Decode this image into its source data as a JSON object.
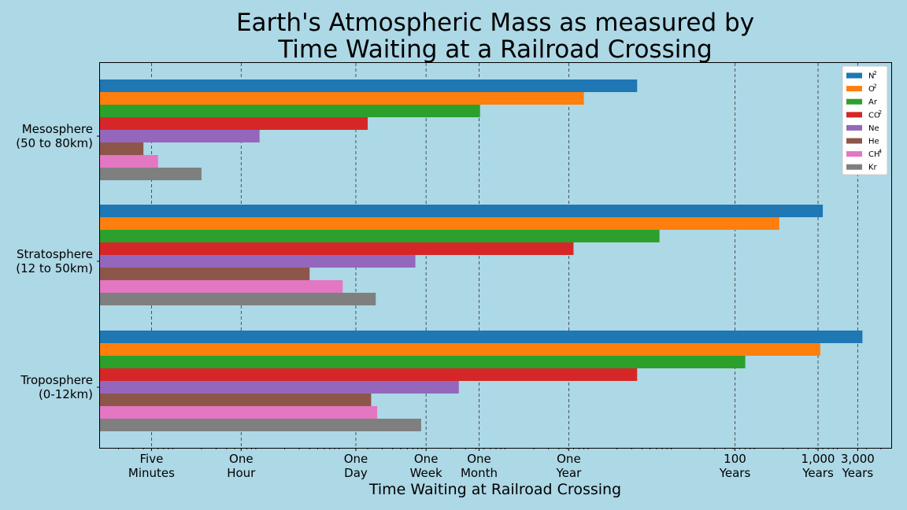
{
  "chart_data": {
    "type": "bar",
    "orientation": "horizontal",
    "title": [
      "Earth's Atmospheric Mass as measured by",
      "Time Waiting at a Railroad Crossing"
    ],
    "xlabel": "Time Waiting at Railroad Crossing",
    "xscale": "log",
    "xunit": "minutes",
    "xlim": [
      1.2,
      4000000000
    ],
    "grid": "vertical dashed at x ticks",
    "legend_placement": "top-right",
    "categories": [
      [
        "Mesosphere",
        "(50 to 80km)"
      ],
      [
        "Stratosphere",
        "(12 to 50km)"
      ],
      [
        "Troposphere",
        "(0-12km)"
      ]
    ],
    "x_ticks": [
      {
        "value": 5,
        "label": [
          "Five",
          "Minutes"
        ]
      },
      {
        "value": 60,
        "label": [
          "One",
          "Hour"
        ]
      },
      {
        "value": 1440,
        "label": [
          "One",
          "Day"
        ]
      },
      {
        "value": 10080,
        "label": [
          "One",
          "Week"
        ]
      },
      {
        "value": 43800,
        "label": [
          "One",
          "Month"
        ]
      },
      {
        "value": 525960,
        "label": [
          "One",
          "Year"
        ]
      },
      {
        "value": 52596000,
        "label": [
          "100",
          "Years"
        ]
      },
      {
        "value": 525960000,
        "label": [
          "1,000",
          "Years"
        ]
      },
      {
        "value": 1577880000,
        "label": [
          "3,000",
          "Years"
        ]
      }
    ],
    "series": [
      {
        "name": "N",
        "sup": "2",
        "color": "#1f77b4",
        "values": [
          3500000,
          600000000,
          1800000000
        ]
      },
      {
        "name": "O",
        "sup": "2",
        "color": "#ff7f0e",
        "values": [
          800000,
          180000000,
          560000000
        ]
      },
      {
        "name": "Ar",
        "sup": "",
        "color": "#2ca02c",
        "values": [
          45000,
          6500000,
          70000000
        ]
      },
      {
        "name": "CO",
        "sup": "2",
        "color": "#d62728",
        "values": [
          2000,
          600000,
          3500000
        ]
      },
      {
        "name": "Ne",
        "sup": "",
        "color": "#9467bd",
        "values": [
          100,
          7500,
          25000
        ]
      },
      {
        "name": "He",
        "sup": "",
        "color": "#8c564b",
        "values": [
          4,
          400,
          2200
        ]
      },
      {
        "name": "CH",
        "sup": "4",
        "color": "#e377c2",
        "values": [
          6,
          1000,
          2600
        ]
      },
      {
        "name": "Kr",
        "sup": "",
        "color": "#7f7f7f",
        "values": [
          20,
          2500,
          8800
        ]
      }
    ]
  }
}
